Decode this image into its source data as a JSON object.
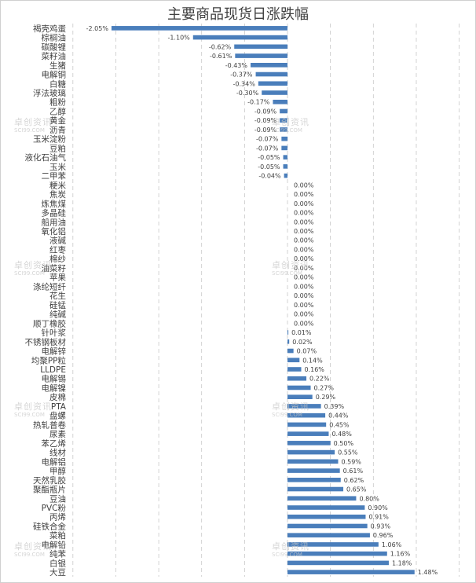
{
  "chart_data": {
    "type": "bar",
    "orientation": "horizontal",
    "title": "主要商品现货日涨跌幅",
    "categories": [
      "褐壳鸡蛋",
      "棕榈油",
      "碳酸锂",
      "菜籽油",
      "生猪",
      "电解铜",
      "白糖",
      "浮法玻璃",
      "粗粉",
      "乙醇",
      "黄金",
      "沥青",
      "玉米淀粉",
      "豆粕",
      "液化石油气",
      "玉米",
      "二甲苯",
      "粳米",
      "焦炭",
      "炼焦煤",
      "多晶硅",
      "船用油",
      "氧化铝",
      "液碱",
      "红枣",
      "棉纱",
      "油菜籽",
      "苹果",
      "涤纶短纤",
      "花生",
      "硅锰",
      "纯碱",
      "顺丁橡胶",
      "针叶浆",
      "不锈钢板材",
      "电解锌",
      "均聚PP粒",
      "LLDPE",
      "电解锡",
      "电解镍",
      "皮棉",
      "PTA",
      "盘螺",
      "热轧普卷",
      "尿素",
      "苯乙烯",
      "线材",
      "电解铝",
      "甲醇",
      "天然乳胶",
      "聚酯瓶片",
      "豆油",
      "PVC粉",
      "丙烯",
      "硅铁合金",
      "菜粕",
      "电解铅",
      "纯苯",
      "白银",
      "大豆"
    ],
    "values": [
      -2.05,
      -1.1,
      -0.62,
      -0.61,
      -0.43,
      -0.37,
      -0.34,
      -0.3,
      -0.17,
      -0.09,
      -0.09,
      -0.09,
      -0.07,
      -0.07,
      -0.05,
      -0.05,
      -0.04,
      0.0,
      0.0,
      0.0,
      0.0,
      0.0,
      0.0,
      0.0,
      0.0,
      0.0,
      0.0,
      0.0,
      0.0,
      0.0,
      0.0,
      0.0,
      0.0,
      0.01,
      0.02,
      0.07,
      0.14,
      0.16,
      0.22,
      0.27,
      0.29,
      0.39,
      0.44,
      0.45,
      0.48,
      0.5,
      0.55,
      0.59,
      0.61,
      0.62,
      0.65,
      0.8,
      0.9,
      0.91,
      0.93,
      0.96,
      1.06,
      1.16,
      1.18,
      1.48
    ],
    "value_format": "percent",
    "xlim": [
      -2.5,
      2.0
    ],
    "grid": true,
    "bar_color": "#4a7ebb"
  },
  "watermark": {
    "cn": "卓创资讯",
    "en": "SCI99.COM"
  }
}
